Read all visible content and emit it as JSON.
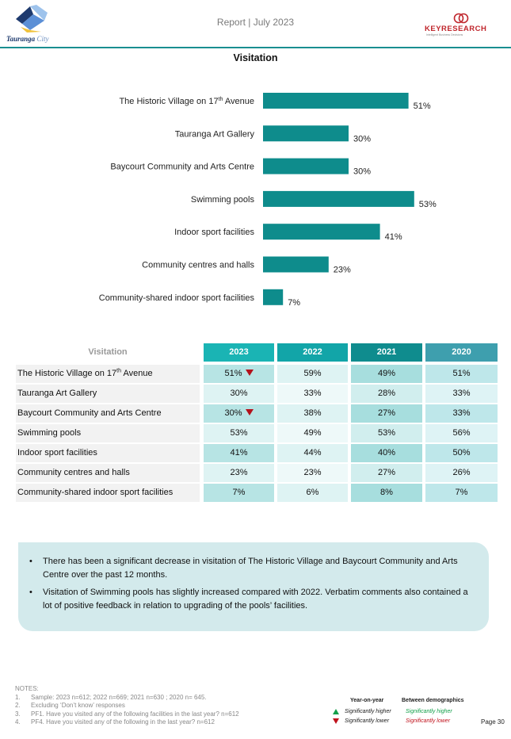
{
  "header": {
    "logo_left_text": "Tauranga",
    "logo_left_suffix": "City",
    "title": "Report | July 2023",
    "logo_right_name": "KEYRESEARCH",
    "logo_right_tagline": "Intelligent Business Decisions"
  },
  "section_title": "Visitation",
  "chart_data": {
    "type": "bar",
    "orientation": "horizontal",
    "categories": [
      "The Historic Village on 17th Avenue",
      "Tauranga Art Gallery",
      "Baycourt Community and Arts Centre",
      "Swimming pools",
      "Indoor sport facilities",
      "Community centres and halls",
      "Community-shared indoor sport facilities"
    ],
    "values": [
      51,
      30,
      30,
      53,
      41,
      23,
      7
    ],
    "value_labels": [
      "51%",
      "30%",
      "30%",
      "53%",
      "41%",
      "23%",
      "7%"
    ],
    "xlim": [
      0,
      100
    ],
    "grid": false,
    "bar_color": "#0e8c8c"
  },
  "table": {
    "header_label": "Visitation",
    "years": [
      "2023",
      "2022",
      "2021",
      "2020"
    ],
    "header_colors": [
      "#1ab4b4",
      "#12a5a8",
      "#0f8c8e",
      "#3e9fae"
    ],
    "rows": [
      {
        "label_main": "The Historic Village on 17",
        "label_sup": "th",
        "label_tail": " Avenue",
        "values": [
          "51%",
          "59%",
          "49%",
          "51%"
        ],
        "sig_down": true
      },
      {
        "label_main": "Tauranga Art Gallery",
        "label_sup": "",
        "label_tail": "",
        "values": [
          "30%",
          "33%",
          "28%",
          "33%"
        ],
        "sig_down": false
      },
      {
        "label_main": "Baycourt Community and Arts Centre",
        "label_sup": "",
        "label_tail": "",
        "values": [
          "30%",
          "38%",
          "27%",
          "33%"
        ],
        "sig_down": true
      },
      {
        "label_main": "Swimming pools",
        "label_sup": "",
        "label_tail": "",
        "values": [
          "53%",
          "49%",
          "53%",
          "56%"
        ],
        "sig_down": false
      },
      {
        "label_main": "Indoor sport facilities",
        "label_sup": "",
        "label_tail": "",
        "values": [
          "41%",
          "44%",
          "40%",
          "50%"
        ],
        "sig_down": false
      },
      {
        "label_main": "Community centres and halls",
        "label_sup": "",
        "label_tail": "",
        "values": [
          "23%",
          "23%",
          "27%",
          "26%"
        ],
        "sig_down": false
      },
      {
        "label_main": "Community-shared indoor sport facilities",
        "label_sup": "",
        "label_tail": "",
        "values": [
          "7%",
          "6%",
          "8%",
          "7%"
        ],
        "sig_down": false
      }
    ],
    "shade_light": [
      "#b7e4e4",
      "#def3f3",
      "#a7dede",
      "#bee7ea"
    ],
    "shade_alt": [
      "#def3f3",
      "#eef9f9",
      "#d1eeee",
      "#def3f5"
    ],
    "sig_down_color": "#b3121c"
  },
  "commentary": [
    "There has been a significant decrease in visitation of The Historic Village and Baycourt Community and Arts Centre over the past 12 months.",
    "Visitation of Swimming pools has slightly increased compared with 2022. Verbatim comments also contained a lot of positive feedback in relation to upgrading of the pools’ facilities."
  ],
  "notes": {
    "heading": "NOTES:",
    "items": [
      {
        "num": "1.",
        "text": "Sample: 2023 n=612; 2022 n=669; 2021 n=630 ; 2020 n= 645."
      },
      {
        "num": "2.",
        "text": "Excluding ‘Don’t know’ responses"
      },
      {
        "num": "3.",
        "text": "PF1. Have you visited any of the following facilities in the last year? n=612"
      },
      {
        "num": "4.",
        "text": "PF4. Have you visited any of the following in the last year? n=612"
      }
    ]
  },
  "legend": {
    "year_on_year": "Year-on-year",
    "between_demographics": "Between demographics",
    "sig_higher": "Significantly higher",
    "sig_lower": "Significantly lower",
    "higher_color": "#12a04a",
    "lower_color": "#c0121c"
  },
  "page_number": "Page 30"
}
